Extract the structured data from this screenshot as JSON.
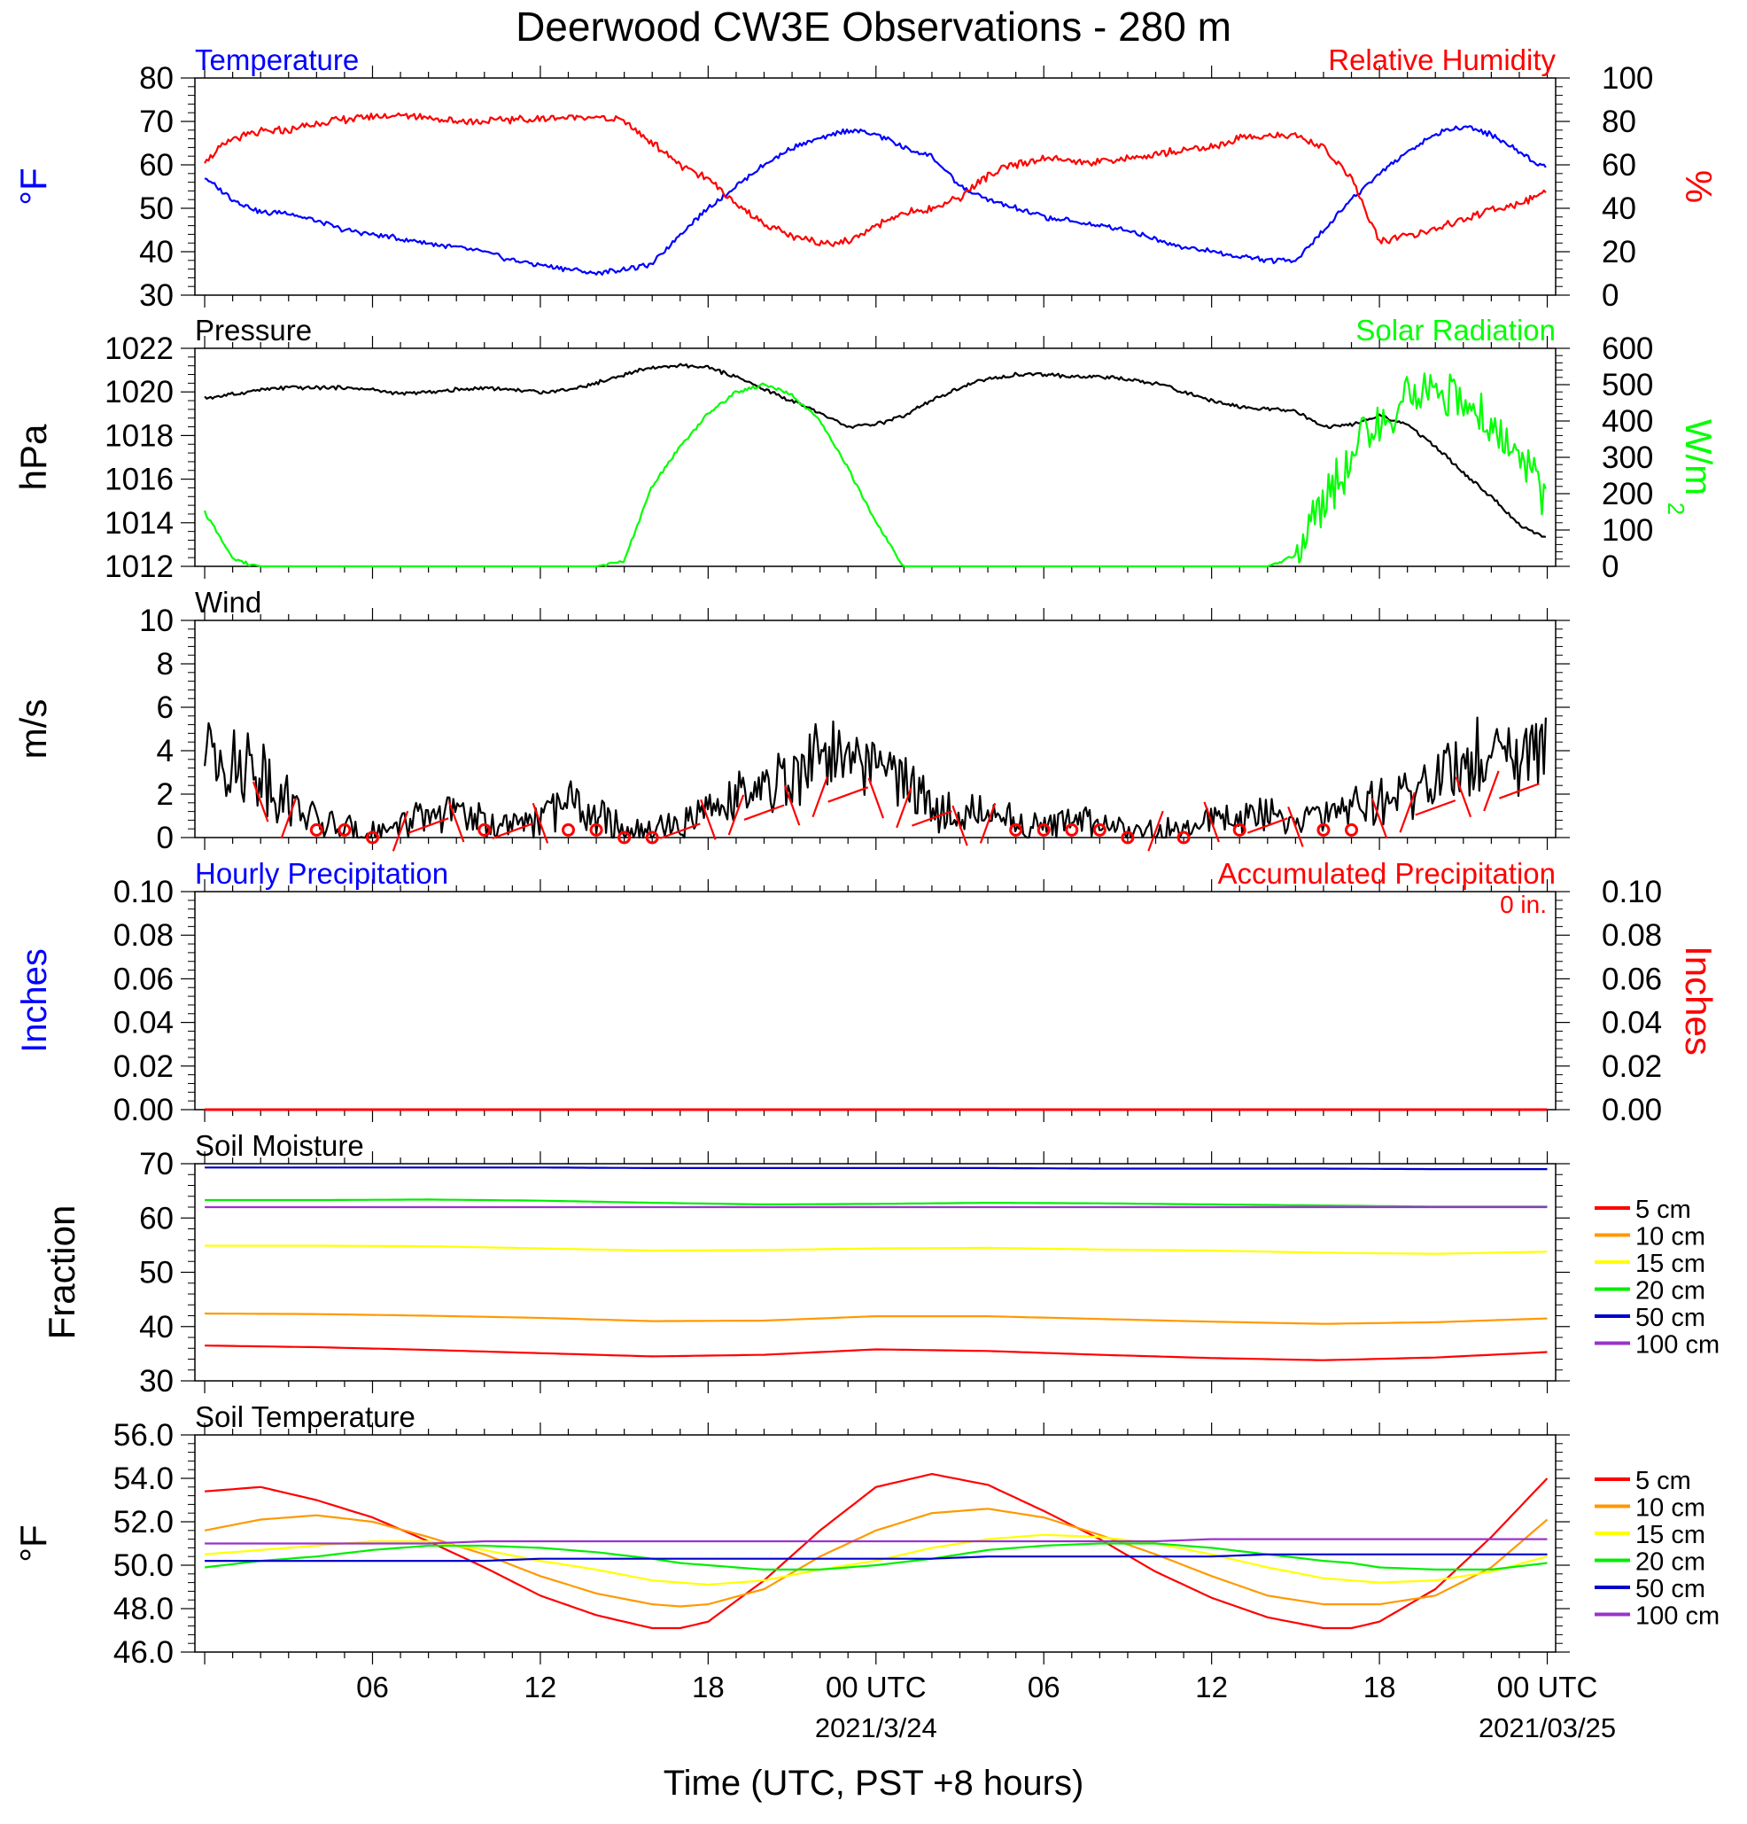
{
  "title": "Deerwood CW3E Observations - 280 m",
  "xaxis": {
    "label": "Time (UTC, PST +8 hours)",
    "ticks": [
      {
        "h": 6,
        "label": "06"
      },
      {
        "h": 12,
        "label": "12"
      },
      {
        "h": 18,
        "label": "18"
      },
      {
        "h": 24,
        "label": "00 UTC",
        "sub": "2021/3/24"
      },
      {
        "h": 30,
        "label": "06"
      },
      {
        "h": 36,
        "label": "12"
      },
      {
        "h": 42,
        "label": "18"
      },
      {
        "h": 48,
        "label": "00 UTC",
        "sub": "2021/03/25"
      }
    ]
  },
  "colors": {
    "temperature": "#0000ff",
    "humidity": "#ff0000",
    "pressure": "#000000",
    "solar": "#00ff00",
    "wind": "#000000",
    "barbs": "#ff0000",
    "hourly_precip": "#0000ff",
    "accum_precip": "#ff0000"
  },
  "chart_data": [
    {
      "type": "line",
      "title_left": "Temperature",
      "title_right": "Relative Humidity",
      "ylabel_left": "°F",
      "ylabel_right": "%",
      "ylim_left": [
        30,
        80
      ],
      "ylim_right": [
        0,
        100
      ],
      "yticks_left": [
        "30",
        "40",
        "50",
        "60",
        "70",
        "80"
      ],
      "yticks_right": [
        "0",
        "20",
        "40",
        "60",
        "80",
        "100"
      ],
      "x_hours": [
        0,
        1,
        2,
        3,
        4,
        5,
        6,
        7,
        8,
        9,
        10,
        11,
        12,
        13,
        14,
        15,
        16,
        17,
        18,
        19,
        20,
        21,
        22,
        23,
        24,
        25,
        26,
        27,
        28,
        29,
        30,
        31,
        32,
        33,
        34,
        35,
        36,
        37,
        38,
        39,
        40,
        41,
        42,
        43,
        44,
        45,
        46,
        47,
        48
      ],
      "series": [
        {
          "name": "Temperature",
          "axis": "left",
          "values": [
            57,
            52,
            49,
            49,
            47,
            45,
            44,
            43,
            42,
            41,
            40,
            38,
            37,
            36,
            35,
            36,
            37,
            44,
            50,
            55,
            60,
            64,
            66,
            68,
            67,
            64,
            62,
            55,
            52,
            50,
            48,
            47,
            46,
            45,
            43,
            41,
            40,
            39,
            38,
            38,
            45,
            52,
            58,
            63,
            67,
            69,
            67,
            63,
            59
          ]
        },
        {
          "name": "Relative Humidity",
          "axis": "right",
          "values": [
            62,
            72,
            75,
            76,
            79,
            81,
            82,
            83,
            82,
            80,
            80,
            81,
            81,
            82,
            82,
            80,
            70,
            60,
            53,
            42,
            33,
            27,
            24,
            25,
            32,
            38,
            40,
            45,
            55,
            60,
            63,
            62,
            61,
            63,
            65,
            67,
            68,
            72,
            74,
            73,
            68,
            54,
            24,
            28,
            30,
            35,
            39,
            42,
            48
          ]
        }
      ]
    },
    {
      "type": "line",
      "title_left": "Pressure",
      "title_right": "Solar Radiation",
      "ylabel_left": "hPa",
      "ylabel_right": "W/m",
      "ylim_left": [
        1012,
        1022
      ],
      "ylim_right": [
        0,
        600
      ],
      "yticks_left": [
        "1012",
        "1014",
        "1016",
        "1018",
        "1020",
        "1022"
      ],
      "yticks_right": [
        "0",
        "100",
        "200",
        "300",
        "400",
        "500",
        "600"
      ],
      "x_hours": [
        0,
        1,
        2,
        3,
        4,
        5,
        6,
        7,
        8,
        9,
        10,
        11,
        12,
        13,
        14,
        15,
        16,
        17,
        18,
        19,
        20,
        21,
        22,
        23,
        24,
        25,
        26,
        27,
        28,
        29,
        30,
        31,
        32,
        33,
        34,
        35,
        36,
        37,
        38,
        39,
        40,
        41,
        42,
        43,
        44,
        45,
        46,
        47,
        48
      ],
      "series": [
        {
          "name": "Pressure",
          "axis": "left",
          "values": [
            1019.7,
            1019.9,
            1020.1,
            1020.2,
            1020.2,
            1020.2,
            1020.1,
            1019.9,
            1020.0,
            1020.1,
            1020.2,
            1020.1,
            1020.0,
            1020.1,
            1020.4,
            1020.8,
            1021.1,
            1021.2,
            1021.1,
            1020.7,
            1020.1,
            1019.6,
            1019.0,
            1018.4,
            1018.5,
            1018.9,
            1019.6,
            1020.2,
            1020.6,
            1020.8,
            1020.8,
            1020.7,
            1020.7,
            1020.6,
            1020.4,
            1020.0,
            1019.6,
            1019.3,
            1019.2,
            1019.1,
            1018.4,
            1018.5,
            1018.9,
            1018.5,
            1017.5,
            1016.3,
            1015.2,
            1013.9,
            1013.3
          ]
        },
        {
          "name": "Solar Radiation",
          "axis": "right",
          "values": [
            150,
            20,
            0,
            0,
            0,
            0,
            0,
            0,
            0,
            0,
            0,
            0,
            0,
            0,
            0,
            15,
            220,
            330,
            420,
            480,
            500,
            470,
            400,
            270,
            120,
            0,
            0,
            0,
            0,
            0,
            0,
            0,
            0,
            0,
            0,
            0,
            0,
            0,
            0,
            30,
            180,
            300,
            400,
            460,
            500,
            440,
            380,
            320,
            180
          ]
        }
      ]
    },
    {
      "type": "line",
      "title_left": "Wind",
      "ylabel_left": "m/s",
      "ylim_left": [
        0,
        10
      ],
      "yticks_left": [
        "0",
        "2",
        "4",
        "6",
        "8",
        "10"
      ],
      "x_hours": [
        0,
        1,
        2,
        3,
        4,
        5,
        6,
        7,
        8,
        9,
        10,
        11,
        12,
        13,
        14,
        15,
        16,
        17,
        18,
        19,
        20,
        21,
        22,
        23,
        24,
        25,
        26,
        27,
        28,
        29,
        30,
        31,
        32,
        33,
        34,
        35,
        36,
        37,
        38,
        39,
        40,
        41,
        42,
        43,
        44,
        45,
        46,
        47,
        48
      ],
      "series": [
        {
          "name": "Wind",
          "axis": "left",
          "values": [
            4.5,
            3.6,
            3.0,
            1.6,
            0.8,
            0.3,
            0.2,
            0.5,
            1.0,
            1.3,
            0.6,
            0.4,
            1.2,
            1.6,
            1.0,
            0.2,
            0.2,
            0.5,
            1.5,
            1.9,
            2.1,
            2.7,
            3.4,
            3.6,
            3.3,
            2.5,
            1.6,
            1.0,
            1.2,
            0.6,
            0.4,
            0.9,
            0.6,
            0.2,
            0.4,
            0.2,
            1.3,
            0.8,
            1.0,
            0.9,
            1.0,
            1.4,
            1.6,
            2.1,
            2.5,
            3.4,
            3.9,
            3.9,
            3.6
          ]
        }
      ],
      "barb_hours": [
        2,
        3,
        5,
        6,
        7,
        8,
        9,
        10,
        11,
        12,
        13,
        14,
        15,
        16,
        17,
        18,
        19,
        20,
        21,
        22,
        23,
        24,
        25,
        26,
        27,
        28,
        29,
        30,
        31,
        32,
        33,
        34,
        35,
        36,
        37,
        38,
        39,
        40,
        41,
        42,
        43,
        44,
        45,
        46,
        47
      ],
      "calm_hours": [
        4,
        5,
        6,
        10,
        13,
        14,
        15,
        16,
        29,
        30,
        31,
        32,
        33,
        35,
        37,
        40,
        41
      ]
    },
    {
      "type": "line",
      "title_left": "Hourly Precipitation",
      "title_right": "Accumulated Precipitation",
      "annotation": "0 in.",
      "ylabel_left": "Inches",
      "ylabel_right": "Inches",
      "ylim_left": [
        0,
        0.1
      ],
      "ylim_right": [
        0,
        0.1
      ],
      "yticks_left": [
        "0.00",
        "0.02",
        "0.04",
        "0.06",
        "0.08",
        "0.10"
      ],
      "yticks_right": [
        "0.00",
        "0.02",
        "0.04",
        "0.06",
        "0.08",
        "0.10"
      ],
      "x_hours": [
        0,
        48
      ],
      "series": [
        {
          "name": "Hourly Precipitation",
          "axis": "left",
          "values": [
            0,
            0
          ]
        },
        {
          "name": "Accumulated Precipitation",
          "axis": "right",
          "values": [
            0,
            0
          ]
        }
      ]
    },
    {
      "type": "line",
      "title_left": "Soil Moisture",
      "ylabel_left": "Fraction",
      "ylim_left": [
        30,
        70
      ],
      "yticks_left": [
        "30",
        "40",
        "50",
        "60",
        "70"
      ],
      "x_hours": [
        0,
        4,
        8,
        12,
        16,
        20,
        24,
        28,
        32,
        36,
        40,
        44,
        48
      ],
      "series": [
        {
          "name": "5 cm",
          "color": "#ff0000",
          "values": [
            36.5,
            36.2,
            35.7,
            35.1,
            34.5,
            34.8,
            35.8,
            35.5,
            34.8,
            34.2,
            33.8,
            34.3,
            35.3
          ]
        },
        {
          "name": "10 cm",
          "color": "#ff9900",
          "values": [
            42.4,
            42.3,
            42.0,
            41.6,
            41.0,
            41.1,
            41.9,
            41.9,
            41.4,
            40.9,
            40.5,
            40.8,
            41.5
          ]
        },
        {
          "name": "15 cm",
          "color": "#ffff00",
          "values": [
            54.9,
            54.9,
            54.8,
            54.4,
            54.0,
            54.1,
            54.4,
            54.5,
            54.2,
            54.0,
            53.6,
            53.4,
            53.8
          ]
        },
        {
          "name": "20 cm",
          "color": "#00ee00",
          "values": [
            63.3,
            63.3,
            63.4,
            63.2,
            62.8,
            62.5,
            62.6,
            62.8,
            62.7,
            62.5,
            62.3,
            62.1,
            62.1
          ]
        },
        {
          "name": "50 cm",
          "color": "#0000cc",
          "values": [
            69.3,
            69.3,
            69.3,
            69.3,
            69.2,
            69.2,
            69.2,
            69.2,
            69.1,
            69.1,
            69.1,
            69.0,
            69.0
          ]
        },
        {
          "name": "100 cm",
          "color": "#9933cc",
          "values": [
            62.0,
            62.0,
            62.0,
            62.0,
            62.0,
            62.0,
            62.0,
            62.0,
            62.0,
            62.0,
            62.0,
            62.0,
            62.0
          ]
        }
      ]
    },
    {
      "type": "line",
      "title_left": "Soil Temperature",
      "ylabel_left": "°F",
      "ylim_left": [
        46,
        56
      ],
      "yticks_left": [
        "46.0",
        "48.0",
        "50.0",
        "52.0",
        "54.0",
        "56.0"
      ],
      "x_hours": [
        0,
        2,
        4,
        6,
        8,
        10,
        12,
        14,
        16,
        17,
        18,
        20,
        22,
        24,
        26,
        28,
        30,
        32,
        34,
        36,
        38,
        40,
        41,
        42,
        44,
        46,
        48
      ],
      "series": [
        {
          "name": "5 cm",
          "color": "#ff0000",
          "values": [
            53.4,
            53.6,
            53.0,
            52.2,
            51.1,
            49.9,
            48.6,
            47.7,
            47.1,
            47.1,
            47.4,
            49.3,
            51.6,
            53.6,
            54.2,
            53.7,
            52.5,
            51.2,
            49.7,
            48.5,
            47.6,
            47.1,
            47.1,
            47.4,
            48.9,
            51.3,
            54.0
          ]
        },
        {
          "name": "10 cm",
          "color": "#ff9900",
          "values": [
            51.6,
            52.1,
            52.3,
            52.0,
            51.3,
            50.5,
            49.5,
            48.7,
            48.2,
            48.1,
            48.2,
            48.9,
            50.4,
            51.6,
            52.4,
            52.6,
            52.2,
            51.4,
            50.5,
            49.5,
            48.6,
            48.2,
            48.2,
            48.2,
            48.6,
            49.9,
            52.1
          ]
        },
        {
          "name": "15 cm",
          "color": "#ffff00",
          "values": [
            50.5,
            50.7,
            50.9,
            51.1,
            51.1,
            50.7,
            50.2,
            49.8,
            49.3,
            49.2,
            49.1,
            49.3,
            49.8,
            50.2,
            50.8,
            51.2,
            51.4,
            51.3,
            51.0,
            50.5,
            49.9,
            49.4,
            49.3,
            49.2,
            49.3,
            49.7,
            50.4
          ]
        },
        {
          "name": "20 cm",
          "color": "#00ee00",
          "values": [
            49.9,
            50.2,
            50.4,
            50.7,
            50.9,
            50.9,
            50.8,
            50.6,
            50.3,
            50.1,
            50.0,
            49.8,
            49.8,
            50.0,
            50.3,
            50.7,
            50.9,
            51.0,
            51.0,
            50.8,
            50.5,
            50.2,
            50.1,
            49.9,
            49.8,
            49.8,
            50.1
          ]
        },
        {
          "name": "50 cm",
          "color": "#0000cc",
          "values": [
            50.2,
            50.2,
            50.2,
            50.2,
            50.2,
            50.2,
            50.3,
            50.3,
            50.3,
            50.3,
            50.3,
            50.3,
            50.3,
            50.3,
            50.3,
            50.4,
            50.4,
            50.4,
            50.4,
            50.4,
            50.5,
            50.5,
            50.5,
            50.5,
            50.5,
            50.5,
            50.5
          ]
        },
        {
          "name": "100 cm",
          "color": "#9933cc",
          "values": [
            51.0,
            51.0,
            51.0,
            51.0,
            51.0,
            51.1,
            51.1,
            51.1,
            51.1,
            51.1,
            51.1,
            51.1,
            51.1,
            51.1,
            51.1,
            51.1,
            51.1,
            51.1,
            51.1,
            51.2,
            51.2,
            51.2,
            51.2,
            51.2,
            51.2,
            51.2,
            51.2
          ]
        }
      ]
    }
  ]
}
